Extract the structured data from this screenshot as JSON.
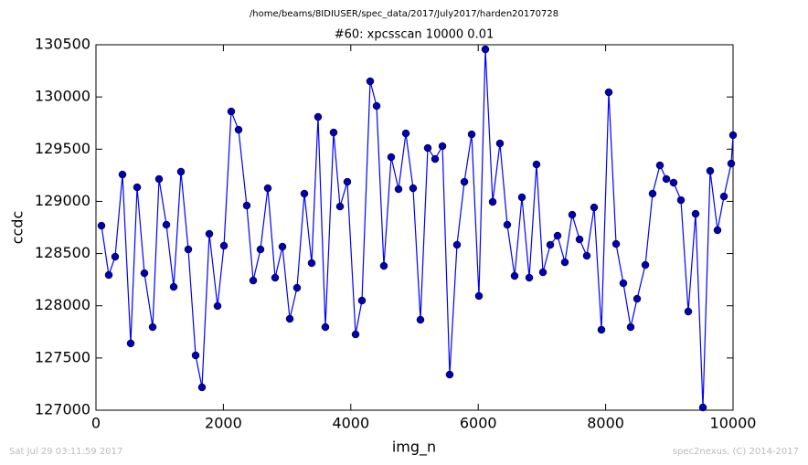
{
  "chart_data": {
    "type": "line",
    "suptitle": "/home/beams/8IDIUSER/spec_data/2017/July2017/harden20170728",
    "title": "#60: xpcsscan 10000 0.01",
    "x_label": "img_n",
    "y_label": "ccdc",
    "footer_left": "Sat Jul 29 03:11:59 2017",
    "footer_right": "spec2nexus, (C) 2014-2017",
    "xlim": [
      0,
      10000
    ],
    "xticks": [
      0,
      2000,
      4000,
      6000,
      8000,
      10000
    ],
    "ylim": [
      127000,
      130500
    ],
    "yticks": [
      127000,
      127500,
      128000,
      128500,
      129000,
      129500,
      130000,
      130500
    ],
    "x": [
      86,
      201,
      301,
      416,
      545,
      646,
      760,
      890,
      990,
      1105,
      1220,
      1334,
      1449,
      1564,
      1664,
      1779,
      1908,
      2009,
      2123,
      2238,
      2367,
      2468,
      2582,
      2697,
      2812,
      2927,
      3042,
      3156,
      3271,
      3386,
      3486,
      3601,
      3730,
      3831,
      3945,
      4075,
      4175,
      4304,
      4405,
      4519,
      4634,
      4749,
      4864,
      4978,
      5093,
      5208,
      5323,
      5438,
      5552,
      5667,
      5782,
      5897,
      6011,
      6112,
      6227,
      6341,
      6456,
      6571,
      6686,
      6801,
      6915,
      7016,
      7131,
      7245,
      7360,
      7475,
      7590,
      7704,
      7819,
      7934,
      8049,
      8164,
      8278,
      8393,
      8494,
      8623,
      8737,
      8852,
      8953,
      9067,
      9182,
      9297,
      9412,
      9527,
      9641,
      9756,
      9857,
      9971,
      10000
    ],
    "series": [
      {
        "name": "ccdc",
        "color": "#0000ff",
        "marker_color": "#0000b0",
        "values": [
          128767,
          128295,
          128470,
          129257,
          127640,
          129135,
          128312,
          127796,
          129214,
          128776,
          128181,
          129284,
          128540,
          127525,
          127219,
          128689,
          127998,
          128575,
          129861,
          129686,
          128960,
          128242,
          128540,
          129126,
          128269,
          128566,
          127875,
          128172,
          129074,
          128409,
          129809,
          127796,
          129660,
          128951,
          129187,
          127726,
          128050,
          130150,
          129914,
          128382,
          129424,
          129117,
          129651,
          129126,
          127866,
          129511,
          129406,
          129529,
          127341,
          128584,
          129187,
          129642,
          128094,
          130456,
          128995,
          129555,
          128776,
          128286,
          129039,
          128269,
          129354,
          128321,
          128584,
          128671,
          128417,
          128872,
          128636,
          128479,
          128942,
          127770,
          130045,
          128592,
          128216,
          127796,
          128067,
          128391,
          129074,
          129345,
          129214,
          129179,
          129012,
          127945,
          128881,
          127026,
          129292,
          128724,
          129047,
          129362,
          129634
        ]
      }
    ]
  }
}
